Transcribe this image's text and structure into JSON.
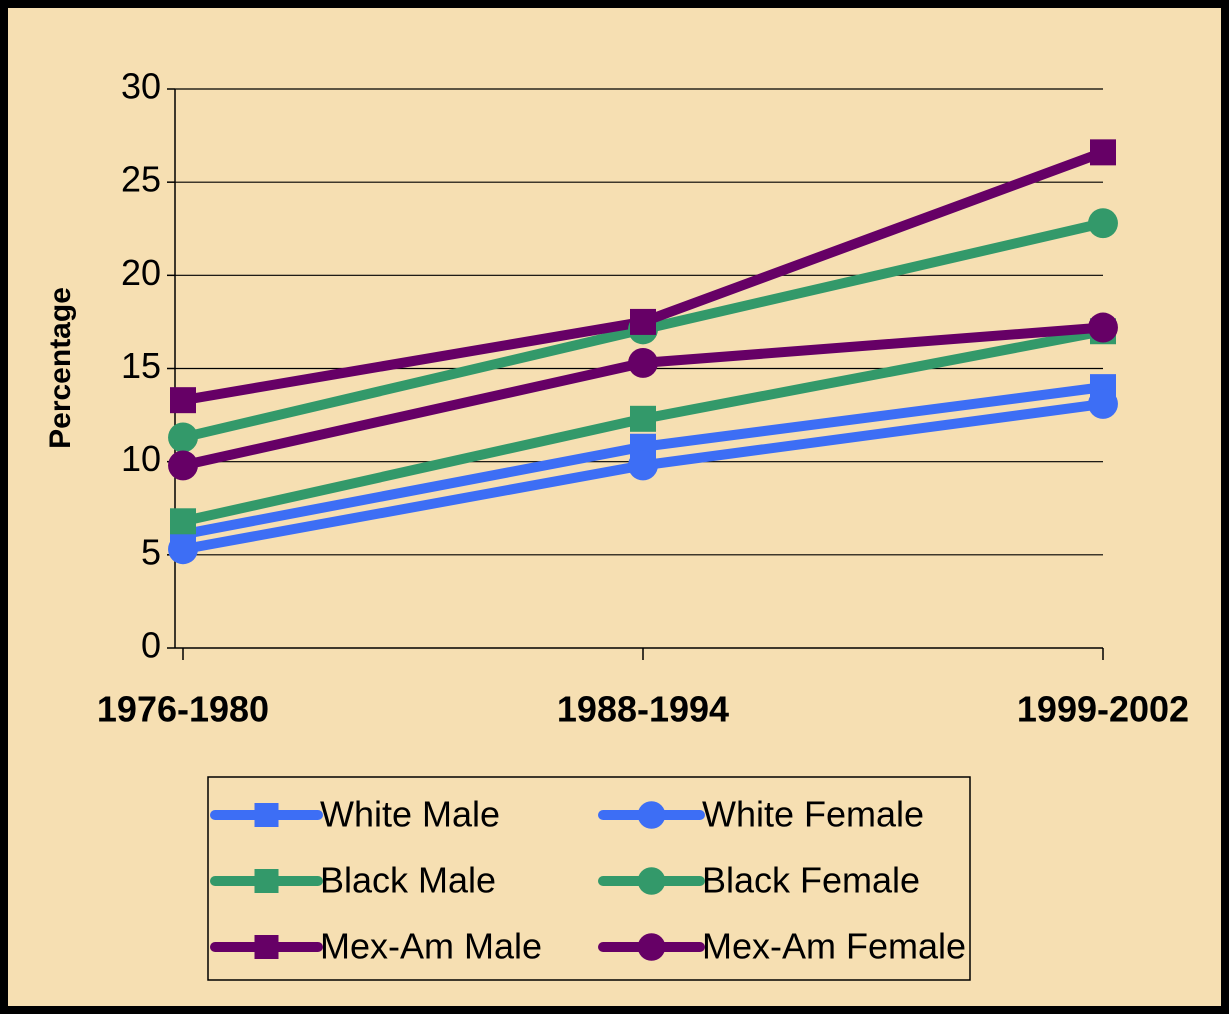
{
  "chart_data": {
    "type": "line",
    "ylabel": "Percentage",
    "categories": [
      "1976-1980",
      "1988-1994",
      "1999-2002"
    ],
    "ylim": [
      0,
      30
    ],
    "yticks": [
      0,
      5,
      10,
      15,
      20,
      25,
      30
    ],
    "grid": true,
    "series": [
      {
        "name": "White Male",
        "color": "#3d6ef5",
        "marker": "square",
        "values": [
          6.1,
          10.8,
          14.0
        ]
      },
      {
        "name": "White Female",
        "color": "#3d6ef5",
        "marker": "circle",
        "values": [
          5.3,
          9.8,
          13.1
        ]
      },
      {
        "name": "Black Male",
        "color": "#33996a",
        "marker": "square",
        "values": [
          6.8,
          12.3,
          17.0
        ]
      },
      {
        "name": "Black Female",
        "color": "#33996a",
        "marker": "circle",
        "values": [
          11.3,
          17.1,
          22.8
        ]
      },
      {
        "name": "Mex-Am Male",
        "color": "#660066",
        "marker": "square",
        "values": [
          13.3,
          17.5,
          26.6
        ]
      },
      {
        "name": "Mex-Am Female",
        "color": "#660066",
        "marker": "circle",
        "values": [
          9.8,
          15.3,
          17.2
        ]
      }
    ]
  }
}
